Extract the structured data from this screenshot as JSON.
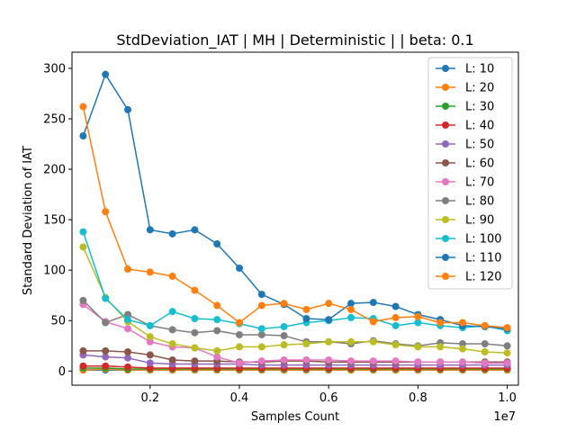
{
  "chart_data": {
    "type": "line",
    "title": "StdDeviation_IAT  | MH | Deterministic |  | beta: 0.1",
    "xlabel": "Samples Count",
    "ylabel": "Standard Deviation of IAT",
    "x_offset_label": "1e7",
    "xlim": [
      0.025,
      1.025
    ],
    "ylim": [
      -14,
      316
    ],
    "x_ticks": [
      0.2,
      0.4,
      0.6,
      0.8,
      1.0
    ],
    "x_tick_labels": [
      "0.2",
      "0.4",
      "0.6",
      "0.8",
      "1.0"
    ],
    "y_ticks": [
      0,
      50,
      100,
      150,
      200,
      250,
      300
    ],
    "y_tick_labels": [
      "0",
      "50",
      "100",
      "150",
      "200",
      "250",
      "300"
    ],
    "grid": false,
    "legend_position": "upper right",
    "x": [
      0.05,
      0.1,
      0.15,
      0.2,
      0.25,
      0.3,
      0.35,
      0.4,
      0.45,
      0.5,
      0.55,
      0.6,
      0.65,
      0.7,
      0.75,
      0.8,
      0.85,
      0.9,
      0.95,
      1.0
    ],
    "series": [
      {
        "name": "L: 10",
        "color": "#1f77b4",
        "values": [
          1,
          1,
          1,
          1,
          1,
          1,
          1,
          1,
          1,
          1,
          1,
          1,
          1,
          1,
          1,
          1,
          1,
          1,
          1,
          1
        ]
      },
      {
        "name": "L: 20",
        "color": "#ff7f0e",
        "values": [
          1,
          2,
          1,
          1,
          1,
          1,
          1,
          1,
          1,
          1,
          1,
          1,
          1,
          1,
          1,
          1,
          1,
          1,
          1,
          1
        ]
      },
      {
        "name": "L: 30",
        "color": "#2ca02c",
        "values": [
          3,
          3,
          2,
          2,
          2,
          2,
          2,
          2,
          2,
          2,
          2,
          2,
          2,
          2,
          2,
          2,
          2,
          2,
          2,
          2
        ]
      },
      {
        "name": "L: 40",
        "color": "#d62728",
        "values": [
          5,
          5,
          4,
          3,
          3,
          3,
          3,
          3,
          3,
          3,
          3,
          3,
          3,
          3,
          3,
          3,
          3,
          3,
          3,
          3
        ]
      },
      {
        "name": "L: 50",
        "color": "#9467bd",
        "values": [
          16,
          14,
          13,
          8,
          7,
          7,
          7,
          7,
          6,
          6,
          6,
          6,
          6,
          6,
          6,
          6,
          6,
          6,
          6,
          6
        ]
      },
      {
        "name": "L: 60",
        "color": "#8c564b",
        "values": [
          20,
          20,
          19,
          16,
          11,
          10,
          10,
          9,
          9,
          10,
          10,
          9,
          9,
          9,
          9,
          9,
          9,
          9,
          9,
          9
        ]
      },
      {
        "name": "L: 70",
        "color": "#e377c2",
        "values": [
          66,
          49,
          42,
          29,
          24,
          23,
          14,
          8,
          10,
          11,
          11,
          11,
          10,
          10,
          10,
          9,
          9,
          9,
          8,
          8
        ]
      },
      {
        "name": "L: 80",
        "color": "#7f7f7f",
        "values": [
          70,
          48,
          56,
          45,
          41,
          38,
          40,
          36,
          36,
          35,
          29,
          29,
          27,
          30,
          27,
          25,
          28,
          27,
          27,
          25
        ]
      },
      {
        "name": "L: 90",
        "color": "#bcbd22",
        "values": [
          123,
          73,
          49,
          34,
          27,
          23,
          20,
          24,
          24,
          26,
          27,
          29,
          29,
          29,
          26,
          24,
          24,
          22,
          19,
          18
        ]
      },
      {
        "name": "L: 100",
        "color": "#17becf",
        "values": [
          138,
          72,
          51,
          45,
          59,
          52,
          51,
          47,
          42,
          44,
          48,
          50,
          53,
          52,
          45,
          48,
          45,
          43,
          45,
          40
        ]
      },
      {
        "name": "L: 110",
        "color": "#1f77b4",
        "values": [
          233,
          294,
          259,
          140,
          136,
          140,
          126,
          102,
          76,
          66,
          52,
          51,
          67,
          68,
          64,
          56,
          51,
          45,
          44,
          42
        ]
      },
      {
        "name": "L: 120",
        "color": "#ff7f0e",
        "values": [
          262,
          158,
          101,
          98,
          94,
          80,
          65,
          48,
          65,
          67,
          61,
          67,
          61,
          49,
          53,
          54,
          48,
          48,
          45,
          43
        ]
      }
    ]
  }
}
